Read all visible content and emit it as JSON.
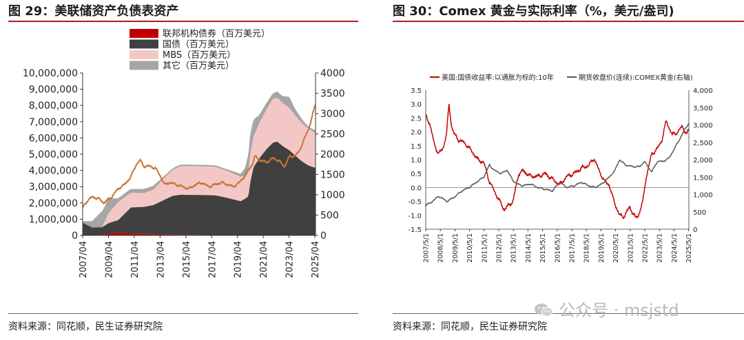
{
  "left": {
    "title": "图 29：美联储资产负债表资产",
    "source": "资料来源：同花顺，民生证券研究院",
    "legend": [
      "联邦机构债券（百万美元）",
      "国债（百万美元）",
      "MBS（百万美元）",
      "其它（百万美元）"
    ],
    "colors": {
      "agency": "#c00000",
      "treasury": "#404040",
      "mbs": "#f4c7c7",
      "other": "#a6a6a6",
      "gold": "#c87533"
    }
  },
  "right": {
    "title": "图 30：Comex 黄金与实际利率（%，美元/盎司)",
    "source": "资料来源：同花顺，民生证券研究院",
    "legend": [
      "美国:国债收益率:以通胀为标的:10年",
      "期货收盘价(连续):COMEX黄金(右轴)"
    ],
    "colors": {
      "real_rate": "#c00000",
      "gold": "#595959"
    }
  },
  "watermark": {
    "text": "公众号 · msjstd"
  },
  "chart_data": [
    {
      "type": "area",
      "title": "美联储资产负债表资产",
      "x_tick_labels": [
        "2007/04",
        "2009/04",
        "2011/04",
        "2013/04",
        "2015/04",
        "2017/04",
        "2019/04",
        "2021/04",
        "2023/04",
        "2025/04"
      ],
      "left_axis": {
        "ticks": [
          "0",
          "1,000,000",
          "2,000,000",
          "3,000,000",
          "4,000,000",
          "5,000,000",
          "6,000,000",
          "7,000,000",
          "8,000,000",
          "9,000,000",
          "10,000,000"
        ],
        "ylim": [
          0,
          10000000
        ]
      },
      "right_axis": {
        "ticks": [
          "0",
          "500",
          "1000",
          "1500",
          "2000",
          "2500",
          "3000",
          "3500",
          "4000"
        ],
        "ylim": [
          0,
          4000
        ]
      },
      "x_years": [
        2007.25,
        2008.0,
        2008.75,
        2009.25,
        2010.0,
        2011.0,
        2012.0,
        2012.75,
        2013.5,
        2014.25,
        2014.83,
        2016.0,
        2017.5,
        2018.5,
        2019.5,
        2019.83,
        2020.1,
        2020.25,
        2020.5,
        2021.0,
        2021.5,
        2022.0,
        2022.33,
        2022.75,
        2023.25,
        2023.75,
        2024.25,
        2024.75,
        2025.3
      ],
      "series": [
        {
          "name": "联邦机构债券（百万美元）",
          "values": [
            0,
            0,
            20000,
            100000,
            160000,
            120000,
            90000,
            70000,
            60000,
            40000,
            40000,
            30000,
            10000,
            2000,
            2000,
            2000,
            2000,
            2000,
            2000,
            2000,
            2000,
            2000,
            2000,
            2000,
            2000,
            2000,
            2000,
            2000,
            2000
          ]
        },
        {
          "name": "国债（百万美元）",
          "values": [
            780000,
            480000,
            480000,
            650000,
            780000,
            1600000,
            1660000,
            1800000,
            2100000,
            2400000,
            2460000,
            2460000,
            2460000,
            2300000,
            2100000,
            2250000,
            2400000,
            3300000,
            4200000,
            4800000,
            5300000,
            5700000,
            5770000,
            5500000,
            5250000,
            4900000,
            4550000,
            4300000,
            4150000
          ]
        },
        {
          "name": "MBS（百万美元）",
          "values": [
            0,
            0,
            0,
            600000,
            1100000,
            900000,
            850000,
            950000,
            1300000,
            1600000,
            1760000,
            1760000,
            1750000,
            1650000,
            1500000,
            1400000,
            1400000,
            1700000,
            1900000,
            2200000,
            2450000,
            2700000,
            2700000,
            2650000,
            2600000,
            2450000,
            2350000,
            2250000,
            2150000
          ]
        },
        {
          "name": "其它（百万美元）",
          "values": [
            100000,
            400000,
            1000000,
            900000,
            250000,
            250000,
            250000,
            250000,
            150000,
            100000,
            100000,
            100000,
            100000,
            100000,
            200000,
            500000,
            1200000,
            1300000,
            1000000,
            500000,
            400000,
            350000,
            400000,
            400000,
            700000,
            400000,
            250000,
            150000,
            150000
          ]
        }
      ],
      "overlay": {
        "axis": "right",
        "x_years": [
          2007.25,
          2007.6,
          2008.0,
          2008.5,
          2008.9,
          2009.5,
          2010.0,
          2010.5,
          2011.0,
          2011.4,
          2011.7,
          2012.0,
          2012.5,
          2012.9,
          2013.3,
          2013.6,
          2014.0,
          2014.5,
          2015.0,
          2015.5,
          2016.0,
          2016.5,
          2017.0,
          2017.5,
          2018.0,
          2018.5,
          2018.9,
          2019.4,
          2019.9,
          2020.4,
          2020.6,
          2021.0,
          2021.5,
          2022.0,
          2022.4,
          2022.9,
          2023.3,
          2023.7,
          2024.0,
          2024.4,
          2024.8,
          2025.1,
          2025.35
        ],
        "values": [
          680,
          850,
          950,
          900,
          800,
          950,
          1150,
          1250,
          1450,
          1750,
          1850,
          1700,
          1700,
          1650,
          1450,
          1250,
          1300,
          1250,
          1200,
          1150,
          1250,
          1300,
          1200,
          1250,
          1300,
          1250,
          1200,
          1300,
          1500,
          1750,
          1950,
          1850,
          1800,
          1900,
          1850,
          1700,
          1950,
          1950,
          2050,
          2350,
          2650,
          3000,
          3300
        ]
      }
    },
    {
      "type": "line",
      "title": "Comex 黄金与实际利率（%，美元/盎司)",
      "x_tick_labels": [
        "2007/5/1",
        "2008/5/1",
        "2009/5/1",
        "2010/5/1",
        "2011/5/1",
        "2012/5/1",
        "2013/5/1",
        "2014/5/1",
        "2015/5/1",
        "2016/5/1",
        "2017/5/1",
        "2018/5/1",
        "2019/5/1",
        "2020/5/1",
        "2021/5/1",
        "2022/5/1",
        "2023/5/1",
        "2024/5/1",
        "2025/5/1"
      ],
      "left_axis": {
        "ticks": [
          "-1.5",
          "-1.0",
          "-0.5",
          "0.0",
          "0.5",
          "1.0",
          "1.5",
          "2.0",
          "2.5",
          "3.0",
          "3.5"
        ],
        "ylim": [
          -1.5,
          3.5
        ]
      },
      "right_axis": {
        "ticks": [
          "0",
          "500",
          "1,000",
          "1,500",
          "2,000",
          "2,500",
          "3,000",
          "3,500",
          "4,000"
        ],
        "ylim": [
          0,
          4000
        ]
      },
      "series": [
        {
          "name": "美国:国债收益率:以通胀为标的:10年",
          "axis": "left",
          "x_years": [
            2007.33,
            2007.6,
            2007.9,
            2008.2,
            2008.5,
            2008.75,
            2008.92,
            2009.1,
            2009.3,
            2009.6,
            2010.0,
            2010.5,
            2010.9,
            2011.3,
            2011.7,
            2012.0,
            2012.4,
            2012.7,
            2012.9,
            2013.3,
            2013.7,
            2014.0,
            2014.5,
            2015.0,
            2015.5,
            2016.0,
            2016.5,
            2017.0,
            2017.5,
            2018.0,
            2018.5,
            2018.85,
            2019.2,
            2019.6,
            2019.9,
            2020.1,
            2020.3,
            2020.6,
            2020.9,
            2021.3,
            2021.7,
            2021.9,
            2022.2,
            2022.4,
            2022.8,
            2023.2,
            2023.5,
            2023.8,
            2024.2,
            2024.6,
            2024.9,
            2025.2,
            2025.35
          ],
          "values": [
            2.6,
            2.3,
            1.6,
            1.2,
            1.4,
            1.9,
            3.0,
            2.2,
            1.9,
            1.7,
            1.6,
            1.3,
            1.0,
            0.9,
            0.2,
            -0.1,
            -0.5,
            -0.8,
            -0.7,
            -0.5,
            0.5,
            0.6,
            0.4,
            0.4,
            0.5,
            0.3,
            0.1,
            0.4,
            0.5,
            0.7,
            0.8,
            1.05,
            0.6,
            0.2,
            0.1,
            -0.3,
            -0.6,
            -1.0,
            -1.05,
            -0.7,
            -1.1,
            -1.0,
            -0.5,
            0.3,
            1.2,
            1.4,
            1.7,
            2.4,
            1.9,
            2.0,
            2.2,
            1.9,
            2.1
          ]
        },
        {
          "name": "期货收盘价(连续):COMEX黄金(右轴)",
          "axis": "right",
          "x_years": [
            2007.33,
            2007.8,
            2008.2,
            2008.8,
            2009.3,
            2009.8,
            2010.3,
            2010.8,
            2011.3,
            2011.7,
            2012.0,
            2012.5,
            2012.9,
            2013.3,
            2013.6,
            2014.0,
            2014.5,
            2015.0,
            2015.5,
            2016.0,
            2016.5,
            2017.0,
            2017.5,
            2018.0,
            2018.5,
            2018.9,
            2019.4,
            2019.9,
            2020.3,
            2020.6,
            2021.0,
            2021.5,
            2022.0,
            2022.3,
            2022.8,
            2023.2,
            2023.6,
            2024.0,
            2024.4,
            2024.8,
            2025.1,
            2025.35
          ],
          "values": [
            680,
            800,
            950,
            800,
            930,
            1100,
            1200,
            1350,
            1500,
            1850,
            1700,
            1600,
            1700,
            1400,
            1300,
            1250,
            1300,
            1200,
            1150,
            1100,
            1350,
            1200,
            1250,
            1350,
            1250,
            1200,
            1300,
            1500,
            1700,
            2000,
            1850,
            1800,
            1800,
            1950,
            1650,
            1950,
            1950,
            2050,
            2350,
            2650,
            2900,
            3050
          ]
        }
      ]
    }
  ]
}
